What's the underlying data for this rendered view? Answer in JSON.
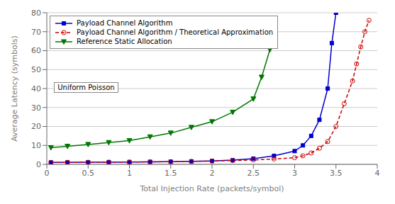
{
  "chart_data": {
    "type": "line",
    "xlabel": "Total Injection Rate (packets/symbol)",
    "ylabel": "Average Latency (symbols)",
    "xlim": [
      0,
      4
    ],
    "ylim": [
      0,
      80
    ],
    "xticks": [
      0,
      0.5,
      1,
      1.5,
      2,
      2.5,
      3,
      3.5,
      4
    ],
    "yticks": [
      0,
      10,
      20,
      30,
      40,
      50,
      60,
      70,
      80
    ],
    "annotation": "Uniform Poisson",
    "grid": "y",
    "legend": "upper left",
    "series": [
      {
        "name": "Payload Channel Algorithm",
        "color": "#0000cc",
        "marker": "square",
        "line_style": "solid",
        "x": [
          0.05,
          0.25,
          0.5,
          0.75,
          1.0,
          1.25,
          1.5,
          1.75,
          2.0,
          2.25,
          2.5,
          2.75,
          3.0,
          3.1,
          3.2,
          3.3,
          3.4,
          3.45,
          3.5
        ],
        "values": [
          1.0,
          1.05,
          1.1,
          1.15,
          1.2,
          1.3,
          1.4,
          1.55,
          1.8,
          2.2,
          3.0,
          4.5,
          7.0,
          10.0,
          15.0,
          23.5,
          40.0,
          64.0,
          80.0
        ]
      },
      {
        "name": "Payload Channel Algorithm / Theoretical Approximation",
        "color": "#cc0000",
        "marker": "open_circle",
        "line_style": "dashed",
        "x": [
          0.05,
          0.25,
          0.5,
          0.75,
          1.0,
          1.25,
          1.5,
          1.75,
          2.0,
          2.25,
          2.5,
          2.75,
          3.0,
          3.1,
          3.2,
          3.3,
          3.4,
          3.5,
          3.6,
          3.7,
          3.75,
          3.8,
          3.85,
          3.9
        ],
        "values": [
          1.0,
          1.05,
          1.1,
          1.15,
          1.2,
          1.3,
          1.4,
          1.55,
          1.75,
          2.0,
          2.3,
          2.8,
          3.5,
          4.5,
          6.0,
          8.5,
          12.0,
          20.0,
          32.0,
          44.0,
          53.0,
          62.0,
          70.0,
          76.0
        ]
      },
      {
        "name": "Reference Static Allocation",
        "color": "#007700",
        "marker": "triangle_down",
        "line_style": "solid",
        "x": [
          0.05,
          0.25,
          0.5,
          0.75,
          1.0,
          1.25,
          1.5,
          1.75,
          2.0,
          2.25,
          2.5,
          2.6,
          2.7
        ],
        "values": [
          8.8,
          9.5,
          10.5,
          11.5,
          12.5,
          14.5,
          16.5,
          19.5,
          22.5,
          27.5,
          34.5,
          46.0,
          60.5
        ]
      }
    ]
  }
}
